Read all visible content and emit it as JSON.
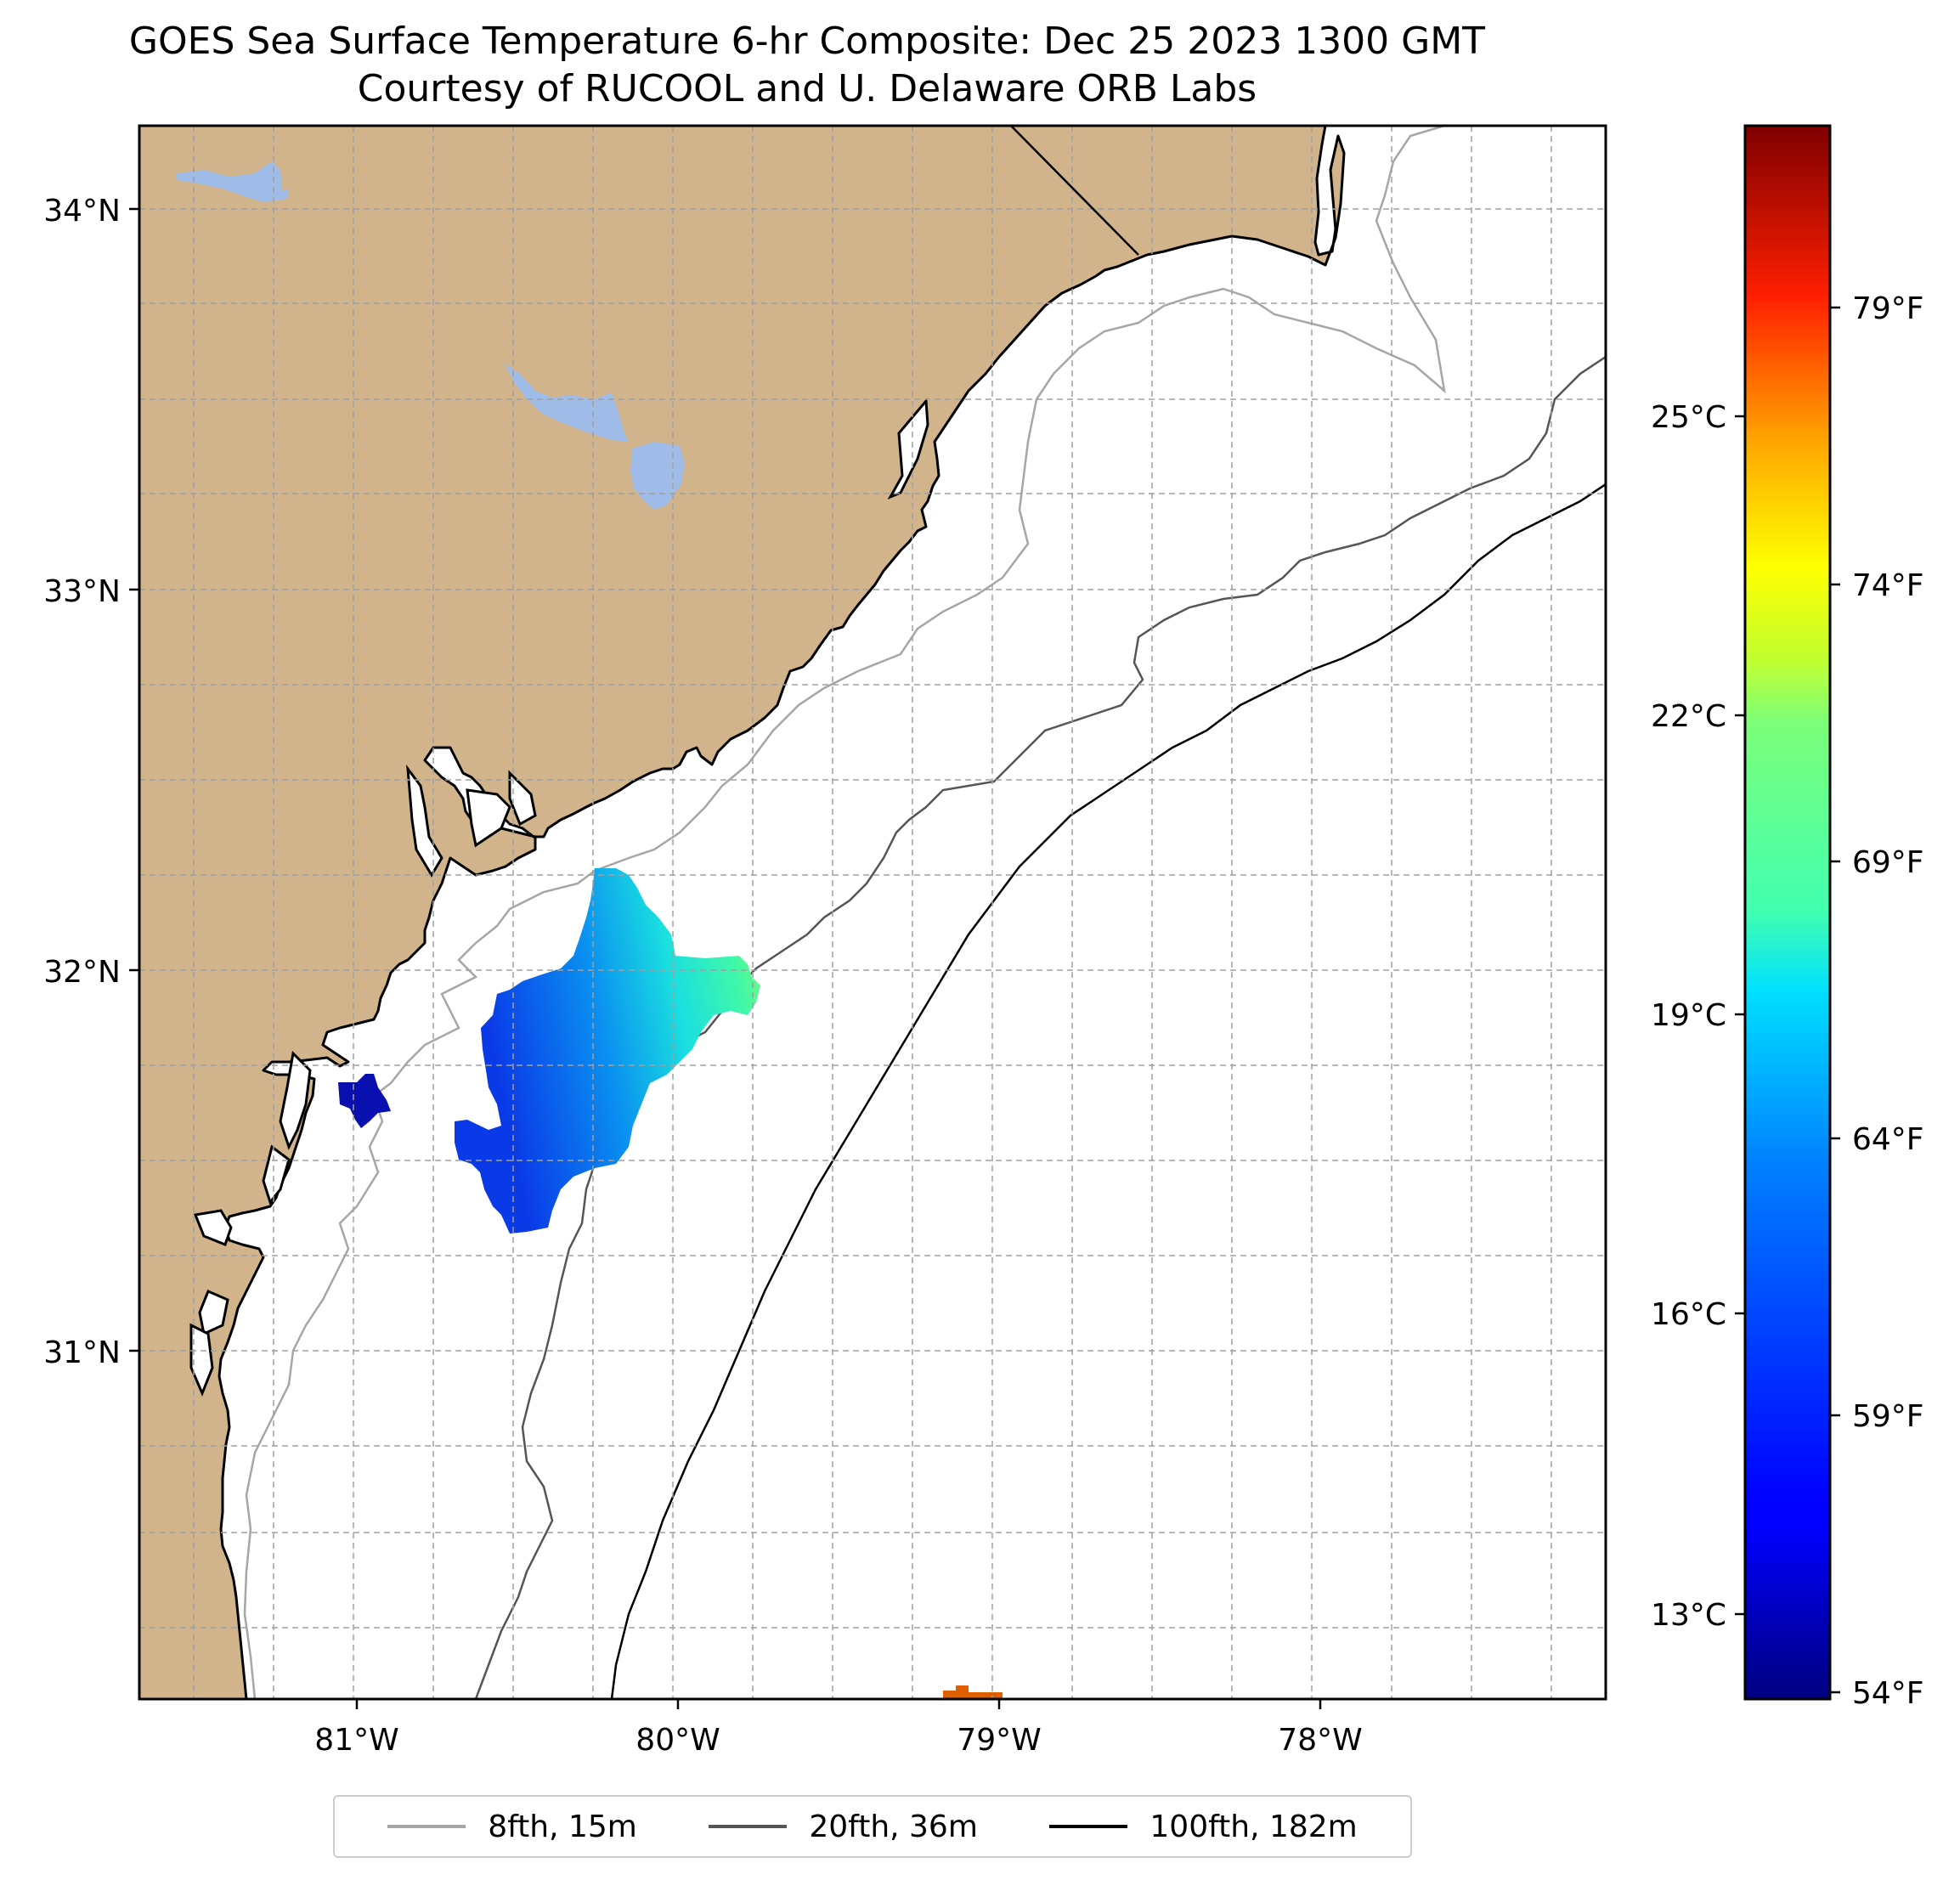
{
  "title": "GOES Sea Surface Temperature 6-hr Composite: Dec 25 2023 1300 GMT",
  "subtitle": "Courtesy of RUCOOL and U. Delaware ORB Labs",
  "map": {
    "lat_labels": [
      "34°N",
      "33°N",
      "32°N",
      "31°N"
    ],
    "lon_labels": [
      "81°W",
      "80°W",
      "79°W",
      "78°W"
    ],
    "colors": {
      "land": "#d2b48c",
      "lakes": "#9fbde8",
      "ocean": "#ffffff",
      "grid": "#a0a0a0"
    }
  },
  "colorbar": {
    "celsius_labels": [
      "25°C",
      "22°C",
      "19°C",
      "16°C",
      "13°C"
    ],
    "fahrenheit_labels": [
      "79°F",
      "74°F",
      "69°F",
      "64°F",
      "59°F",
      "54°F"
    ],
    "colormap": "jet"
  },
  "legend": [
    {
      "label": "8fth, 15m",
      "color": "#a6a6a6"
    },
    {
      "label": "20fth, 36m",
      "color": "#555555"
    },
    {
      "label": "100fth, 182m",
      "color": "#000000"
    }
  ]
}
